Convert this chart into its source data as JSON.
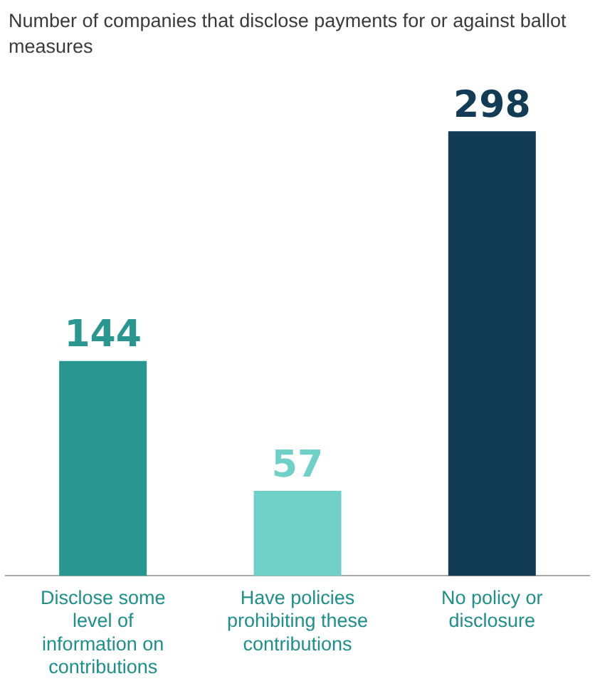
{
  "chart_data": {
    "type": "bar",
    "title": "Number of companies that disclose payments for or against ballot measures",
    "categories": [
      "Disclose some level of information on contributions",
      "Have policies prohibiting these contributions",
      "No policy or disclosure"
    ],
    "values": [
      144,
      57,
      298
    ],
    "colors": [
      "#2a9690",
      "#6fd0c8",
      "#123c55"
    ],
    "data_labels": true,
    "grid": false,
    "legend": false
  }
}
